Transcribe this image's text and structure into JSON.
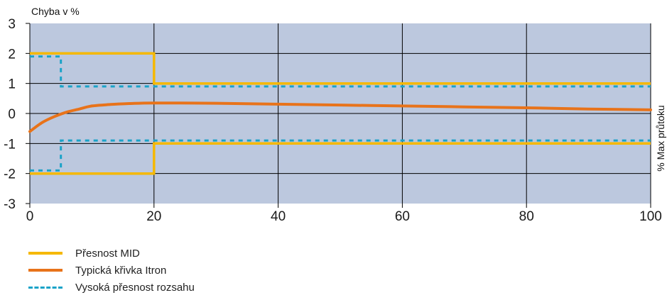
{
  "chart_data": {
    "type": "line",
    "title": "",
    "ylabel": "Chyba v %",
    "xlabel": "% Max průtoku",
    "xlim": [
      0,
      100
    ],
    "ylim": [
      -3,
      3
    ],
    "x_ticks": [
      "0",
      "20",
      "40",
      "60",
      "80",
      "100"
    ],
    "y_ticks": [
      "3",
      "2",
      "1",
      "0",
      "-1",
      "-2",
      "-3"
    ],
    "grid": true,
    "legend_position": "bottom-left",
    "series": [
      {
        "name": "Přesnost MID",
        "style": "solid",
        "color": "#f5b800",
        "upper": {
          "x": [
            0,
            20,
            20,
            100
          ],
          "y": [
            2,
            2,
            1,
            1
          ]
        },
        "lower": {
          "x": [
            0,
            20,
            20,
            100
          ],
          "y": [
            -2,
            -2,
            -1,
            -1
          ]
        }
      },
      {
        "name": "Typická křivka Itron",
        "style": "solid",
        "color": "#e8731a",
        "x": [
          0,
          2,
          4,
          6,
          8,
          10,
          13,
          16,
          20,
          30,
          40,
          50,
          60,
          70,
          80,
          90,
          100
        ],
        "y": [
          -0.6,
          -0.3,
          -0.1,
          0.05,
          0.15,
          0.25,
          0.3,
          0.33,
          0.35,
          0.34,
          0.31,
          0.28,
          0.25,
          0.22,
          0.19,
          0.15,
          0.12
        ]
      },
      {
        "name": "Vysoká přesnost rozsahu",
        "style": "dashed",
        "color": "#1aa3c8",
        "upper": {
          "x": [
            0,
            5,
            5,
            100
          ],
          "y": [
            1.9,
            1.9,
            0.9,
            0.9
          ]
        },
        "lower": {
          "x": [
            0,
            5,
            5,
            100
          ],
          "y": [
            -1.9,
            -1.9,
            -0.9,
            -0.9
          ]
        }
      }
    ]
  }
}
